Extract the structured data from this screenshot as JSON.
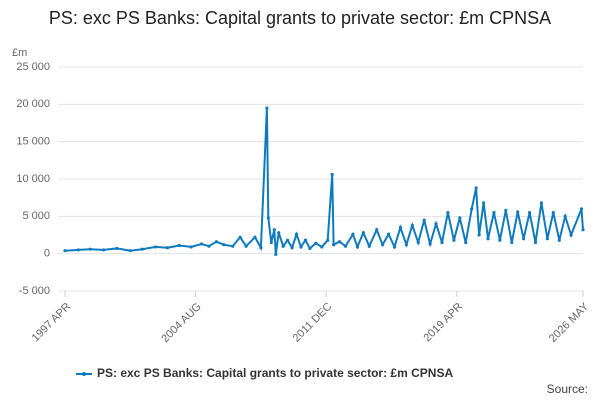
{
  "chart_data": {
    "type": "line",
    "title": "PS: exc PS Banks: Capital grants to private sector: £m CPNSA",
    "y_unit": "£m",
    "source": "Source:",
    "x": [
      "1997 APR",
      "1998 JAN",
      "1998 SEP",
      "1999 JUN",
      "2000 MAR",
      "2000 DEC",
      "2001 AUG",
      "2002 MAY",
      "2003 JAN",
      "2003 SEP",
      "2004 MAY",
      "2004 DEC",
      "2005 MAY",
      "2005 OCT",
      "2006 MAR",
      "2006 SEP",
      "2007 FEB",
      "2007 JUN",
      "2007 DEC",
      "2008 APR",
      "2008 AUG",
      "2008 SEP",
      "2008 NOV",
      "2009 JAN",
      "2009 FEB",
      "2009 APR",
      "2009 JUL",
      "2009 OCT",
      "2010 JAN",
      "2010 APR",
      "2010 JUL",
      "2010 OCT",
      "2011 JAN",
      "2011 MAY",
      "2011 SEP",
      "2012 JAN",
      "2012 APR",
      "2012 MAY",
      "2012 SEP",
      "2013 JAN",
      "2013 JUN",
      "2013 SEP",
      "2014 JAN",
      "2014 MAY",
      "2014 OCT",
      "2015 FEB",
      "2015 JUN",
      "2015 OCT",
      "2016 FEB",
      "2016 JUN",
      "2016 OCT",
      "2017 FEB",
      "2017 JUN",
      "2017 OCT",
      "2018 FEB",
      "2018 JUN",
      "2018 OCT",
      "2019 FEB",
      "2019 JUN",
      "2019 OCT",
      "2020 FEB",
      "2020 MAY",
      "2020 JUL",
      "2020 OCT",
      "2021 JAN",
      "2021 MAY",
      "2021 SEP",
      "2022 JAN",
      "2022 MAY",
      "2022 SEP",
      "2023 JAN",
      "2023 MAY",
      "2023 SEP",
      "2024 JAN",
      "2024 MAY",
      "2024 SEP",
      "2025 JAN",
      "2025 MAY",
      "2025 SEP",
      "2026 APR",
      "2026 MAY"
    ],
    "series": [
      {
        "name": "PS: exc PS Banks: Capital grants to private sector: £m CPNSA",
        "color": "#0f7bbf",
        "values": [
          400,
          500,
          600,
          500,
          700,
          400,
          600,
          900,
          800,
          1100,
          900,
          1300,
          1000,
          1600,
          1200,
          1000,
          2200,
          1000,
          2200,
          800,
          19500,
          4800,
          1500,
          3200,
          -100,
          2800,
          1000,
          1800,
          800,
          2600,
          900,
          1800,
          700,
          1400,
          900,
          1800,
          10600,
          1200,
          1600,
          1000,
          2600,
          900,
          2800,
          1000,
          3200,
          1200,
          2600,
          900,
          3500,
          1200,
          3800,
          1500,
          4500,
          1300,
          4000,
          1500,
          5500,
          1800,
          4800,
          1500,
          6000,
          8800,
          2500,
          6800,
          2000,
          5500,
          1800,
          5800,
          1500,
          5600,
          2000,
          5500,
          1500,
          6800,
          2000,
          5500,
          1800,
          5000,
          2500,
          6000,
          3200
        ]
      }
    ],
    "xticks": [
      "1997 APR",
      "2004 AUG",
      "2011 DEC",
      "2019 APR",
      "2026 MAY"
    ],
    "ylim": [
      -5000,
      25000
    ],
    "yticks": [
      {
        "value": -5000,
        "label": "-5 000"
      },
      0,
      {
        "value": 5000,
        "label": "5 000"
      },
      {
        "value": 10000,
        "label": "10 000"
      },
      {
        "value": 15000,
        "label": "15 000"
      },
      {
        "value": 20000,
        "label": "20 000"
      },
      {
        "value": 25000,
        "label": "25 000"
      }
    ],
    "grid": true
  }
}
